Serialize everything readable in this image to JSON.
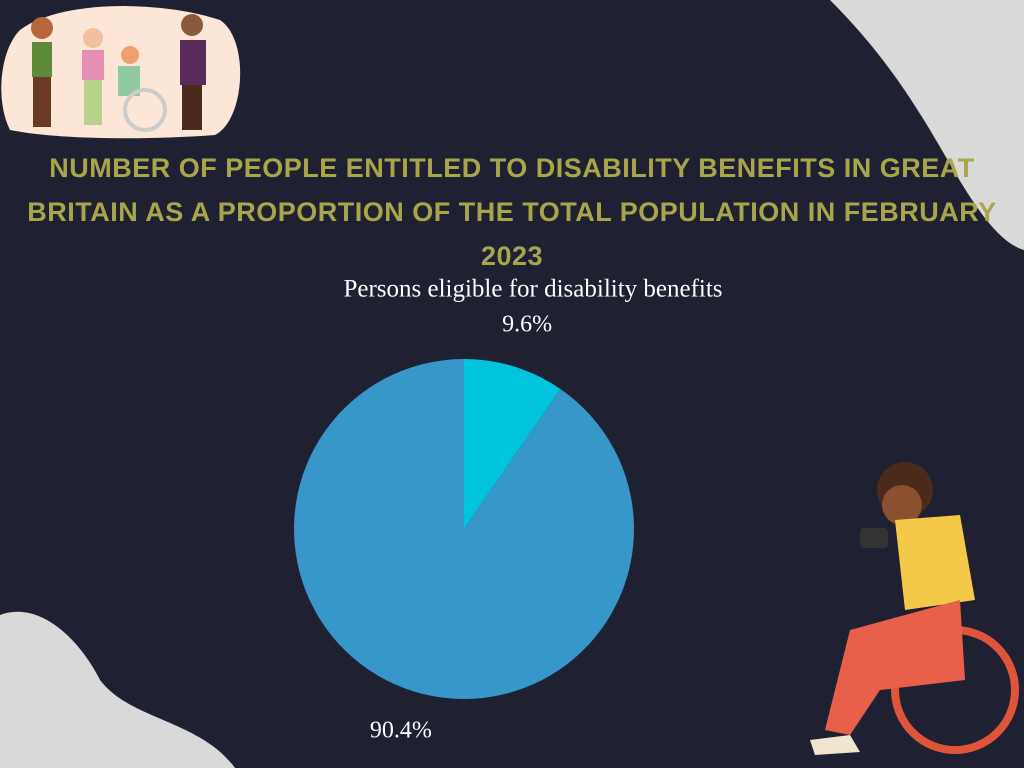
{
  "chart_data": {
    "type": "pie",
    "title": "Number of people entitled to disability benefits in Great Britain as a proportion of the total population in February 2023",
    "subtitle": "Persons eligible for disability benefits",
    "values": [
      9.6,
      90.4
    ],
    "value_labels": [
      "9.6%",
      "90.4%"
    ],
    "colors": [
      "#00c4dc",
      "#3797c8"
    ]
  }
}
